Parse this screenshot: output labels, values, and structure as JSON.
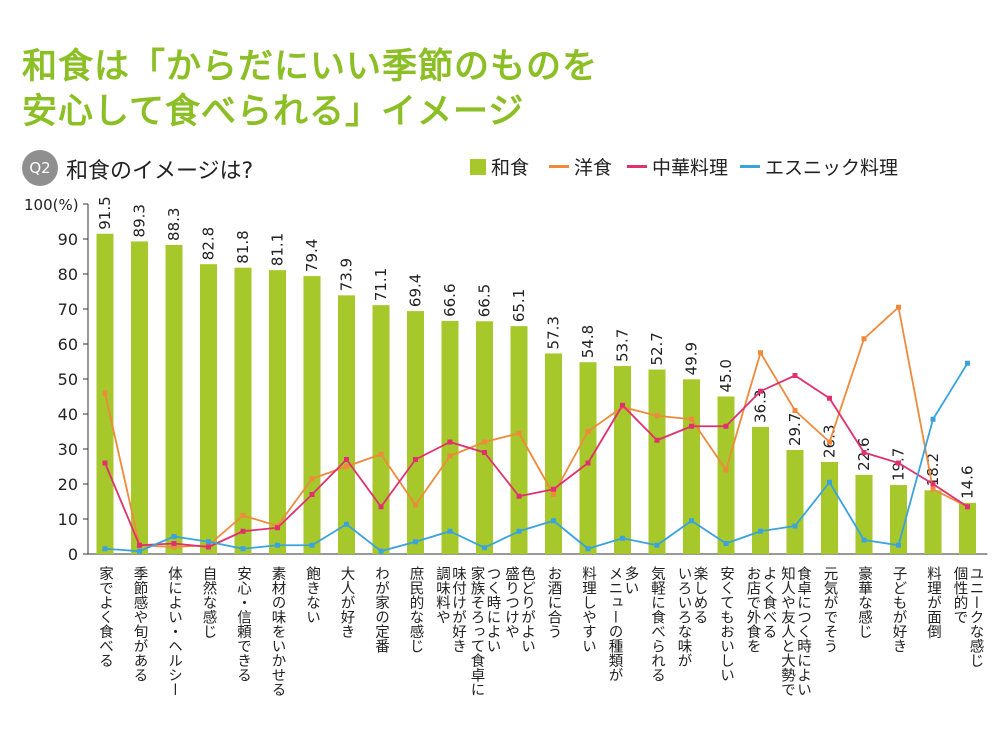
{
  "title": {
    "line1": "和食は「からだにいい季節のものを",
    "line2": "安心して食べられる」イメージ"
  },
  "question": {
    "badge": "Q2",
    "text": "和食のイメージは?"
  },
  "colors": {
    "washoku": "#a6c82a",
    "yoshoku": "#ef8a3c",
    "chuka": "#e0306f",
    "ethnic": "#3aa3de",
    "title": "#8cbf26"
  },
  "legend": {
    "washoku": "和食",
    "yoshoku": "洋食",
    "chuka": "中華料理",
    "ethnic": "エスニック料理"
  },
  "chart_data": {
    "type": "bar",
    "ylabel": "100(%)",
    "ylim": [
      0,
      100
    ],
    "yticks": [
      0,
      10,
      20,
      30,
      40,
      50,
      60,
      70,
      80,
      90
    ],
    "grid": false,
    "legend_position": "top-right",
    "categories": [
      "家でよく食べる",
      "季節感や旬がある",
      "体によい・ヘルシー",
      "自然な感じ",
      "安心・信頼できる",
      "素材の味をいかせる",
      "飽きない",
      "大人が好き",
      "わが家の定番",
      "庶民的な感じ",
      "調味料や味付けが好き",
      "家族そろって食卓につく時によい",
      "盛りつけや色どりがよい",
      "お酒に合う",
      "料理しやすい",
      "メニューの種類が多い",
      "気軽に食べられる",
      "いろいろな味が楽しめる",
      "安くてもおいしい",
      "お店で外食をよく食べる",
      "知人や友人と大勢で食卓につく時によい",
      "元気がでそう",
      "豪華な感じ",
      "子どもが好き",
      "料理が面倒",
      "個性的でユニークな感じ"
    ],
    "labels_display": [
      [
        "家でよく食べる"
      ],
      [
        "季節感や旬がある"
      ],
      [
        "体によい・ヘルシー"
      ],
      [
        "自然な感じ"
      ],
      [
        "安心・信頼できる"
      ],
      [
        "素材の味をいかせる"
      ],
      [
        "飽きない"
      ],
      [
        "大人が好き"
      ],
      [
        "わが家の定番"
      ],
      [
        "庶民的な感じ"
      ],
      [
        "調味料や",
        "味付けが好き"
      ],
      [
        "家族そろって食卓に",
        "つく時によい"
      ],
      [
        "盛りつけや",
        "色どりがよい"
      ],
      [
        "お酒に合う"
      ],
      [
        "料理しやすい"
      ],
      [
        "メニューの種類が",
        "多い"
      ],
      [
        "気軽に食べられる"
      ],
      [
        "いろいろな味が",
        "楽しめる"
      ],
      [
        "安くてもおいしい"
      ],
      [
        "お店で外食を",
        "よく食べる"
      ],
      [
        "知人や友人と大勢で",
        "食卓につく時によい"
      ],
      [
        "元気がでそう"
      ],
      [
        "豪華な感じ"
      ],
      [
        "子どもが好き"
      ],
      [
        "料理が面倒"
      ],
      [
        "個性的で",
        "ユニークな感じ"
      ]
    ],
    "series": [
      {
        "name": "和食",
        "type": "bar",
        "values": [
          91.5,
          89.3,
          88.3,
          82.8,
          81.8,
          81.1,
          79.4,
          73.9,
          71.1,
          69.4,
          66.6,
          66.5,
          65.1,
          57.3,
          54.8,
          53.7,
          52.7,
          49.9,
          45.0,
          36.3,
          29.7,
          26.3,
          22.6,
          19.7,
          18.2,
          14.6
        ],
        "value_labels": [
          "91.5",
          "89.3",
          "88.3",
          "82.8",
          "81.8",
          "81.1",
          "79.4",
          "73.9",
          "71.1",
          "69.4",
          "66.6",
          "66.5",
          "65.1",
          "57.3",
          "54.8",
          "53.7",
          "52.7",
          "49.9",
          "45.0",
          "36.3",
          "29.7",
          "26.3",
          "22.6",
          "19.7",
          "18.2",
          "14.6"
        ]
      },
      {
        "name": "洋食",
        "type": "line",
        "values": [
          46,
          2.5,
          2,
          2.5,
          11,
          8,
          21.5,
          25,
          28.5,
          14,
          28,
          32,
          34.5,
          17,
          35,
          42,
          39.5,
          38.5,
          24,
          57.5,
          41,
          32,
          61.5,
          70.5,
          18.5,
          13.5
        ]
      },
      {
        "name": "中華料理",
        "type": "line",
        "values": [
          26,
          2.5,
          3,
          2,
          6.5,
          7.5,
          17,
          27,
          13.5,
          27,
          32,
          29,
          16.5,
          18.5,
          26,
          42.5,
          32.5,
          36.5,
          36.5,
          46.5,
          51,
          44.5,
          29,
          26,
          20,
          13.5
        ]
      },
      {
        "name": "エスニック料理",
        "type": "line",
        "values": [
          1.5,
          0.8,
          5,
          3.5,
          1.5,
          2.5,
          2.5,
          8.5,
          0.8,
          3.5,
          6.5,
          1.8,
          6.5,
          9.5,
          1.5,
          4.5,
          2.5,
          9.5,
          3,
          6.5,
          8,
          20.5,
          4,
          2.5,
          38.5,
          54.5
        ]
      }
    ]
  }
}
